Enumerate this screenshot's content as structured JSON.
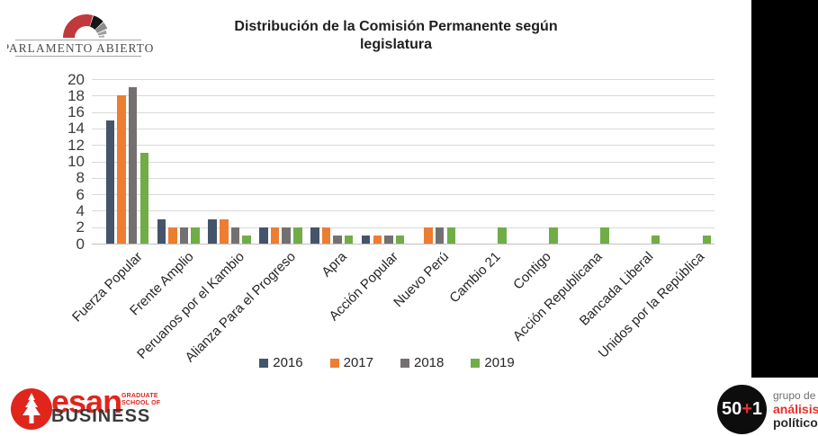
{
  "header": {
    "logo_text": "PARLAMENTO ABIERTO"
  },
  "title": {
    "line1": "Distribución de la Comisión Permanente según",
    "line2": "legislatura"
  },
  "chart_data": {
    "type": "bar",
    "title": "Distribución de la Comisión Permanente según legislatura",
    "categories": [
      "Fuerza Popular",
      "Frente Amplio",
      "Peruanos por el Kambio",
      "Alianza Para el Progreso",
      "Apra",
      "Acción Popular",
      "Nuevo Perú",
      "Cambio 21",
      "Contigo",
      "Acción Republicana",
      "Bancada Liberal",
      "Unidos por la República"
    ],
    "series": [
      {
        "name": "2016",
        "color": "#44546A",
        "values": [
          15,
          3,
          3,
          2,
          2,
          1,
          0,
          0,
          0,
          0,
          0,
          0
        ]
      },
      {
        "name": "2017",
        "color": "#ED7D31",
        "values": [
          18,
          2,
          3,
          2,
          2,
          1,
          2,
          0,
          0,
          0,
          0,
          0
        ]
      },
      {
        "name": "2018",
        "color": "#757070",
        "values": [
          19,
          2,
          2,
          2,
          1,
          1,
          2,
          0,
          0,
          0,
          0,
          0
        ]
      },
      {
        "name": "2019",
        "color": "#70AD47",
        "values": [
          11,
          2,
          1,
          2,
          1,
          1,
          2,
          2,
          2,
          2,
          1,
          1
        ]
      }
    ],
    "xlabel": "",
    "ylabel": "",
    "ylim": [
      0,
      20
    ],
    "yticks": [
      0,
      2,
      4,
      6,
      8,
      10,
      12,
      14,
      16,
      18,
      20
    ],
    "grid": "horizontal",
    "legend_position": "bottom"
  },
  "footer": {
    "esan": {
      "name": "esan",
      "grad_line1": "GRADUATE",
      "grad_line2": "SCHOOL OF",
      "business": "BUSINESS"
    },
    "grupo501": {
      "num_left": "50",
      "plus": "+",
      "num_right": "1",
      "line1": "grupo de",
      "line2": "análisis",
      "line3": "político"
    }
  },
  "colors": {
    "accent_red": "#C0393C",
    "esan_red": "#E0251C",
    "plus_red": "#E8312A",
    "band_black": "#000000",
    "gridline": "#D9D9D9"
  }
}
